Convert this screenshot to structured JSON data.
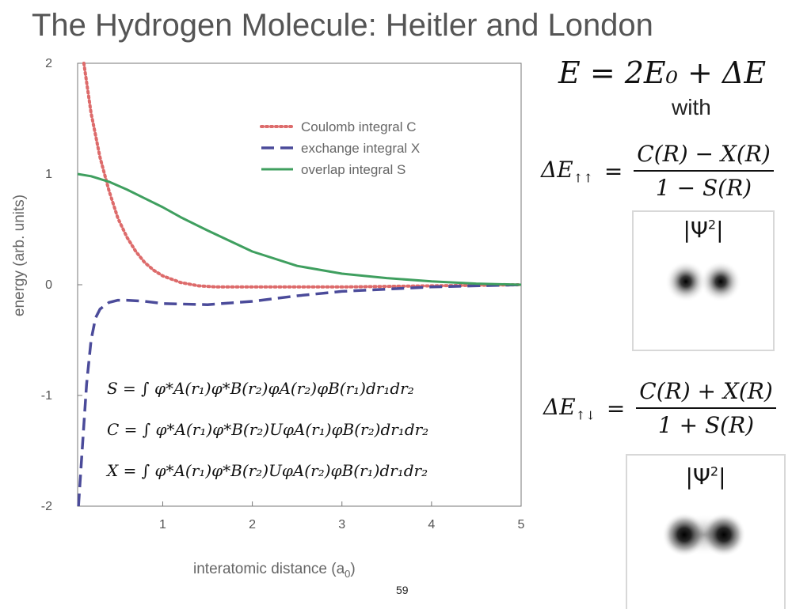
{
  "slide": {
    "title": "The Hydrogen Molecule: Heitler and London",
    "energy_equation": "E = 2E₀ + ΔE",
    "with_text": "with",
    "delta_parallel": {
      "lhs": "ΔE",
      "subscript": "↑↑",
      "equals": "=",
      "numerator": "C(R) − X(R)",
      "denominator": "1 − S(R)"
    },
    "delta_antiparallel": {
      "lhs": "ΔE",
      "subscript": "↑↓",
      "equals": "=",
      "numerator": "C(R) + X(R)",
      "denominator": "1 + S(R)"
    },
    "integrals": {
      "S": "S = ∫ φ*A(r₁)φ*B(r₂)φA(r₂)φB(r₁)dr₁dr₂",
      "C": "C = ∫ φ*A(r₁)φ*B(r₂)UφA(r₁)φB(r₂)dr₁dr₂",
      "X": "X = ∫ φ*A(r₁)φ*B(r₂)UφA(r₂)φB(r₁)dr₁dr₂"
    },
    "psi_box_1": {
      "label": "|Ψ",
      "superscript": "2",
      "label_end": "|"
    },
    "psi_box_2": {
      "label": "|Ψ",
      "superscript": "2",
      "label_end": "|"
    },
    "page_number": "59"
  },
  "colors": {
    "coulomb": "#dd6b6b",
    "exchange": "#4b4b9a",
    "overlap": "#3f9f5f",
    "axis": "#777777"
  },
  "chart_data": {
    "type": "line",
    "xlabel": "interatomic distance (a",
    "xlabel_subscript": "0",
    "xlabel_end": ")",
    "ylabel": "energy (arb. units)",
    "xlim": [
      0.05,
      5
    ],
    "ylim": [
      -2,
      2
    ],
    "xticks": [
      1,
      2,
      3,
      4,
      5
    ],
    "yticks": [
      2,
      1,
      0,
      -1,
      -2
    ],
    "grid": false,
    "legend_position": "top-right",
    "series": [
      {
        "name": "Coulomb integral C",
        "style": "dotted",
        "x": [
          0.12,
          0.2,
          0.3,
          0.4,
          0.5,
          0.6,
          0.7,
          0.8,
          0.9,
          1.0,
          1.2,
          1.4,
          1.6,
          2.0,
          2.5,
          3.0,
          4.0,
          5.0
        ],
        "y": [
          2.0,
          1.55,
          1.15,
          0.85,
          0.6,
          0.43,
          0.3,
          0.2,
          0.13,
          0.08,
          0.02,
          -0.01,
          -0.02,
          -0.02,
          -0.02,
          -0.02,
          -0.01,
          0.0
        ]
      },
      {
        "name": "exchange integral X",
        "style": "dashed",
        "x": [
          0.06,
          0.1,
          0.15,
          0.2,
          0.25,
          0.3,
          0.4,
          0.5,
          0.6,
          0.8,
          1.0,
          1.5,
          2.0,
          2.5,
          3.0,
          4.0,
          5.0
        ],
        "y": [
          -2.0,
          -1.5,
          -0.9,
          -0.5,
          -0.3,
          -0.22,
          -0.16,
          -0.14,
          -0.14,
          -0.15,
          -0.17,
          -0.18,
          -0.15,
          -0.1,
          -0.06,
          -0.02,
          0.0
        ]
      },
      {
        "name": "overlap integral S",
        "style": "solid",
        "x": [
          0.05,
          0.2,
          0.4,
          0.6,
          0.8,
          1.0,
          1.2,
          1.5,
          2.0,
          2.5,
          3.0,
          3.5,
          4.0,
          4.5,
          5.0
        ],
        "y": [
          1.0,
          0.98,
          0.93,
          0.86,
          0.78,
          0.7,
          0.61,
          0.49,
          0.3,
          0.17,
          0.1,
          0.06,
          0.03,
          0.01,
          0.0
        ]
      }
    ]
  }
}
